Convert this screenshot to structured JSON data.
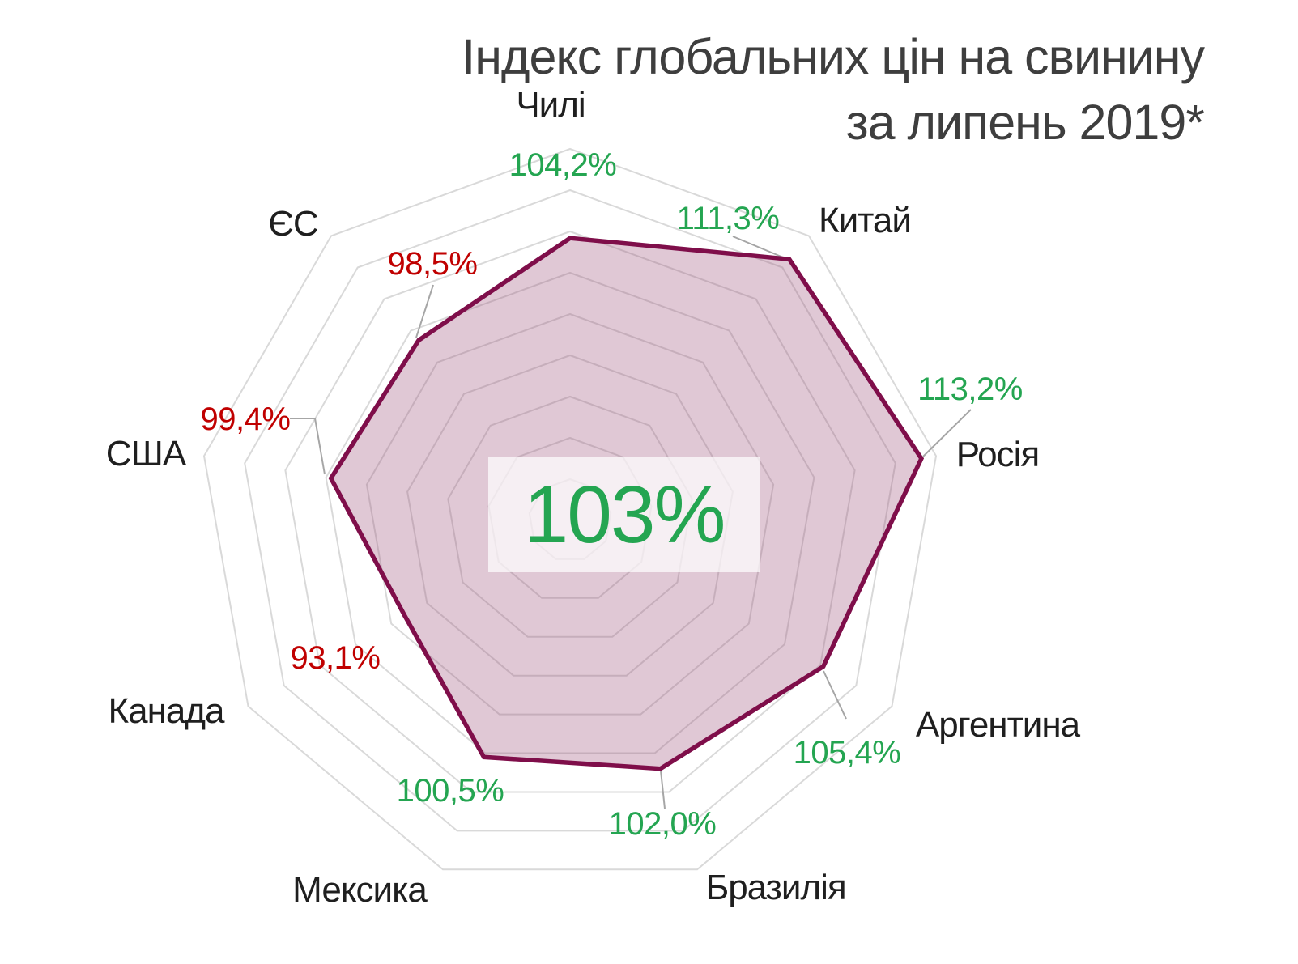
{
  "title": {
    "line1": "Індекс глобальних цін на свинину",
    "line2": "за липень 2019*"
  },
  "chart_data": {
    "type": "radar",
    "title": "Індекс глобальних цін на свинину за липень 2019*",
    "categories": [
      "Чилі",
      "Китай",
      "Росія",
      "Аргентина",
      "Бразилія",
      "Мексика",
      "Канада",
      "США",
      "ЄС"
    ],
    "values": [
      104.2,
      111.3,
      113.2,
      105.4,
      102.0,
      100.5,
      93.1,
      99.4,
      98.5
    ],
    "value_labels": [
      "104,2%",
      "111,3%",
      "113,2%",
      "105,4%",
      "102,0%",
      "100,5%",
      "93,1%",
      "99,4%",
      "98,5%"
    ],
    "center_value_label": "103%",
    "axis": {
      "min": 70,
      "max": 115,
      "step": 5
    },
    "grid": "on",
    "legend": "none",
    "colors": {
      "positive_value": "#24A551",
      "negative_value": "#C00000",
      "series_line": "#7F0E4A",
      "series_fill": "rgba(159,84,123,0.32)",
      "grid_line": "#D9D9D9",
      "leader_line": "#A6A6A6",
      "category_text": "#1F1F1F",
      "title_text": "#3E3E3E"
    }
  }
}
